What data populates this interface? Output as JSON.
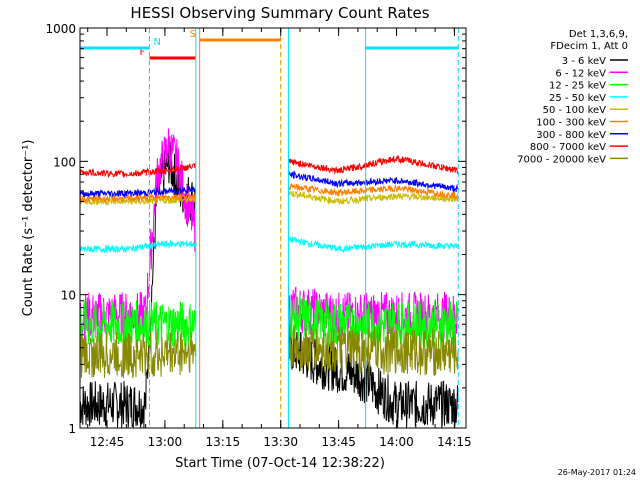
{
  "chart_data": {
    "type": "line",
    "title": "HESSI Observing Summary Count Rates",
    "xlabel": "Start Time (07-Oct-14 12:38:22)",
    "ylabel": "Count Rate (s⁻¹ detector⁻¹)",
    "footer": "26-May-2017 01:24",
    "y_scale": "log",
    "ylim": [
      1,
      1000
    ],
    "xlim": [
      "12:38",
      "14:18"
    ],
    "x_ticks": [
      "12:45",
      "13:00",
      "13:15",
      "13:30",
      "13:45",
      "14:00",
      "14:15"
    ],
    "y_ticks": [
      "1",
      "10",
      "100",
      "1000"
    ],
    "legend_header": [
      "Det 1,3,6,9,",
      "FDecim 1, Att 0"
    ],
    "legend_position": "top-right, outside plot",
    "flags": [
      {
        "label": "F",
        "color": "#ff0000",
        "start": "12:56",
        "end": "13:08"
      },
      {
        "label": "N",
        "color": "#00e0ff",
        "start": "12:38",
        "end": "12:56"
      },
      {
        "label": "N",
        "color": "#00e0ff",
        "start": "13:52",
        "end": "14:16"
      },
      {
        "label": "S",
        "color": "#ff8000",
        "start": "13:09",
        "end": "13:30"
      }
    ],
    "vertical_markers": [
      {
        "time": "12:38",
        "color": "#00e0ff",
        "style": "solid"
      },
      {
        "time": "12:56",
        "color": "#00e0ff",
        "style": "dashed"
      },
      {
        "time": "13:08",
        "color": "#00e0ff",
        "style": "solid"
      },
      {
        "time": "13:09",
        "color": "#ff8000",
        "style": "solid"
      },
      {
        "time": "13:30",
        "color": "#ff8000",
        "style": "dashed"
      },
      {
        "time": "13:32",
        "color": "#00e0ff",
        "style": "solid"
      },
      {
        "time": "13:52",
        "color": "#00e0ff",
        "style": "solid"
      },
      {
        "time": "14:16",
        "color": "#00e0ff",
        "style": "dashed"
      }
    ],
    "series": [
      {
        "name": "3 - 6 keV",
        "color": "#000000",
        "x": [
          "12:38",
          "12:45",
          "12:55",
          "12:58",
          "13:01",
          "13:04",
          "13:08",
          "13:32",
          "13:40",
          "13:50",
          "14:00",
          "14:10",
          "14:16"
        ],
        "values": [
          1.5,
          1.5,
          1.5,
          60,
          100,
          60,
          50,
          4,
          3,
          2.5,
          1.5,
          1.5,
          1.5
        ]
      },
      {
        "name": "6 - 12 keV",
        "color": "#ff00ff",
        "x": [
          "12:38",
          "12:45",
          "12:55",
          "12:58",
          "13:01",
          "13:03",
          "13:06",
          "13:08",
          "13:32",
          "13:45",
          "14:00",
          "14:16"
        ],
        "values": [
          7,
          7,
          7,
          80,
          130,
          100,
          45,
          30,
          8,
          7,
          7,
          7
        ]
      },
      {
        "name": "12 - 25 keV",
        "color": "#00ff00",
        "x": [
          "12:38",
          "12:55",
          "13:08",
          "13:32",
          "13:45",
          "14:00",
          "14:16"
        ],
        "values": [
          6,
          6,
          6,
          7,
          6,
          6,
          6
        ]
      },
      {
        "name": "25 - 50 keV",
        "color": "#00ffff",
        "x": [
          "12:38",
          "12:50",
          "13:00",
          "13:08",
          "13:32",
          "13:45",
          "14:00",
          "14:16"
        ],
        "values": [
          22,
          22,
          24,
          24,
          26,
          22,
          24,
          23
        ]
      },
      {
        "name": "50 - 100 keV",
        "color": "#ccbb00",
        "x": [
          "12:38",
          "12:55",
          "13:08",
          "13:32",
          "13:45",
          "14:00",
          "14:16"
        ],
        "values": [
          50,
          50,
          52,
          58,
          50,
          55,
          52
        ]
      },
      {
        "name": "100 - 300 keV",
        "color": "#ff8000",
        "x": [
          "12:38",
          "12:55",
          "13:08",
          "13:32",
          "13:45",
          "14:00",
          "14:16"
        ],
        "values": [
          52,
          53,
          55,
          65,
          58,
          63,
          55
        ]
      },
      {
        "name": "300 - 800 keV",
        "color": "#0000ff",
        "x": [
          "12:38",
          "12:55",
          "13:08",
          "13:32",
          "13:45",
          "14:00",
          "14:16"
        ],
        "values": [
          57,
          58,
          62,
          80,
          68,
          72,
          62
        ]
      },
      {
        "name": "800 - 7000 keV",
        "color": "#ff0000",
        "x": [
          "12:38",
          "12:50",
          "13:00",
          "13:08",
          "13:32",
          "13:45",
          "14:00",
          "14:10",
          "14:16"
        ],
        "values": [
          83,
          80,
          85,
          92,
          100,
          85,
          105,
          92,
          85
        ]
      },
      {
        "name": "7000 - 20000 keV",
        "color": "#888800",
        "x": [
          "12:38",
          "12:55",
          "13:08",
          "13:32",
          "13:45",
          "14:00",
          "14:16"
        ],
        "values": [
          3.5,
          3.5,
          3.8,
          4,
          3.8,
          3.8,
          3.6
        ]
      }
    ]
  }
}
